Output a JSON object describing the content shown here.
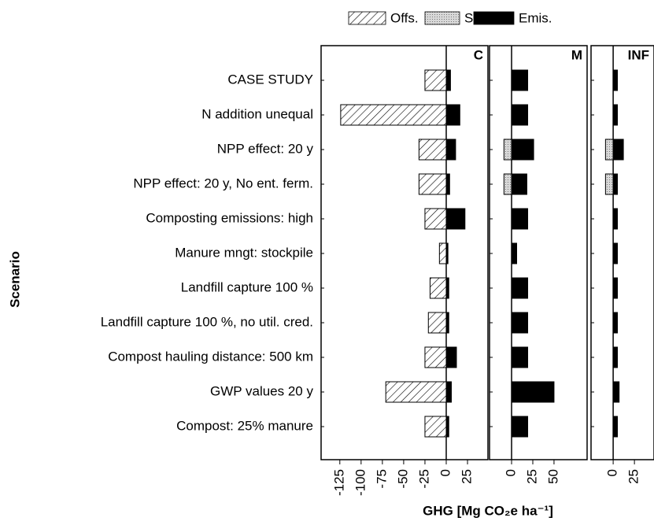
{
  "chart_data": {
    "type": "bar",
    "orientation": "horizontal",
    "ylabel": "Scenario",
    "xlabel": "GHG [Mg CO₂e ha⁻¹]",
    "legend": "top",
    "categories": [
      "CASE STUDY",
      "N addition unequal",
      "NPP effect: 20 y",
      "NPP effect: 20 y, No ent. ferm.",
      "Composting emissions: high",
      "Manure mngt: stockpile",
      "Landfill capture 100 %",
      "Landfill capture 100 %, no util. cred.",
      "Compost hauling distance: 500 km",
      "GWP values 20 y",
      "Compost: 25% manure"
    ],
    "series": [
      {
        "name": "Offs.",
        "color": "#000000",
        "pattern": "hatch"
      },
      {
        "name": "Sinks",
        "color": "#aaaaaa",
        "pattern": "stipple"
      },
      {
        "name": "Emis.",
        "color": "#000000",
        "pattern": "solid"
      }
    ],
    "panels": [
      {
        "title": "C",
        "xlim": [
          -147,
          49
        ],
        "xticks": [
          -125,
          -100,
          -75,
          -50,
          -25,
          0,
          25
        ],
        "series": [
          {
            "values": [
              -25,
              -124,
              -32,
              -32,
              -25,
              -8,
              -19,
              -21,
              -25,
              -71,
              -25
            ]
          },
          {
            "values": [
              0,
              0,
              0,
              0,
              0,
              0,
              0,
              0,
              0,
              0,
              0
            ]
          },
          {
            "values": [
              5,
              16,
              11,
              4,
              22,
              2,
              3,
              3,
              12,
              6,
              3
            ]
          }
        ]
      },
      {
        "title": "M",
        "xlim": [
          -26,
          89
        ],
        "xticks": [
          0,
          25,
          50
        ],
        "series": [
          {
            "values": [
              0,
              0,
              0,
              0,
              0,
              0,
              0,
              0,
              0,
              0,
              0
            ]
          },
          {
            "values": [
              0,
              0,
              -9,
              -9,
              0,
              0,
              0,
              0,
              0,
              0,
              0
            ]
          },
          {
            "values": [
              19,
              19,
              26,
              18,
              19,
              6,
              19,
              19,
              19,
              50,
              19
            ]
          }
        ]
      },
      {
        "title": "INF",
        "xlim": [
          -26,
          48
        ],
        "xticks": [
          0,
          25
        ],
        "series": [
          {
            "values": [
              0,
              0,
              0,
              0,
              0,
              0,
              0,
              0,
              0,
              0,
              0
            ]
          },
          {
            "values": [
              0,
              0,
              -9,
              -9,
              0,
              0,
              0,
              0,
              0,
              0,
              0
            ]
          },
          {
            "values": [
              5,
              5,
              12,
              5,
              5,
              5,
              5,
              5,
              5,
              7,
              5
            ]
          }
        ]
      }
    ]
  }
}
